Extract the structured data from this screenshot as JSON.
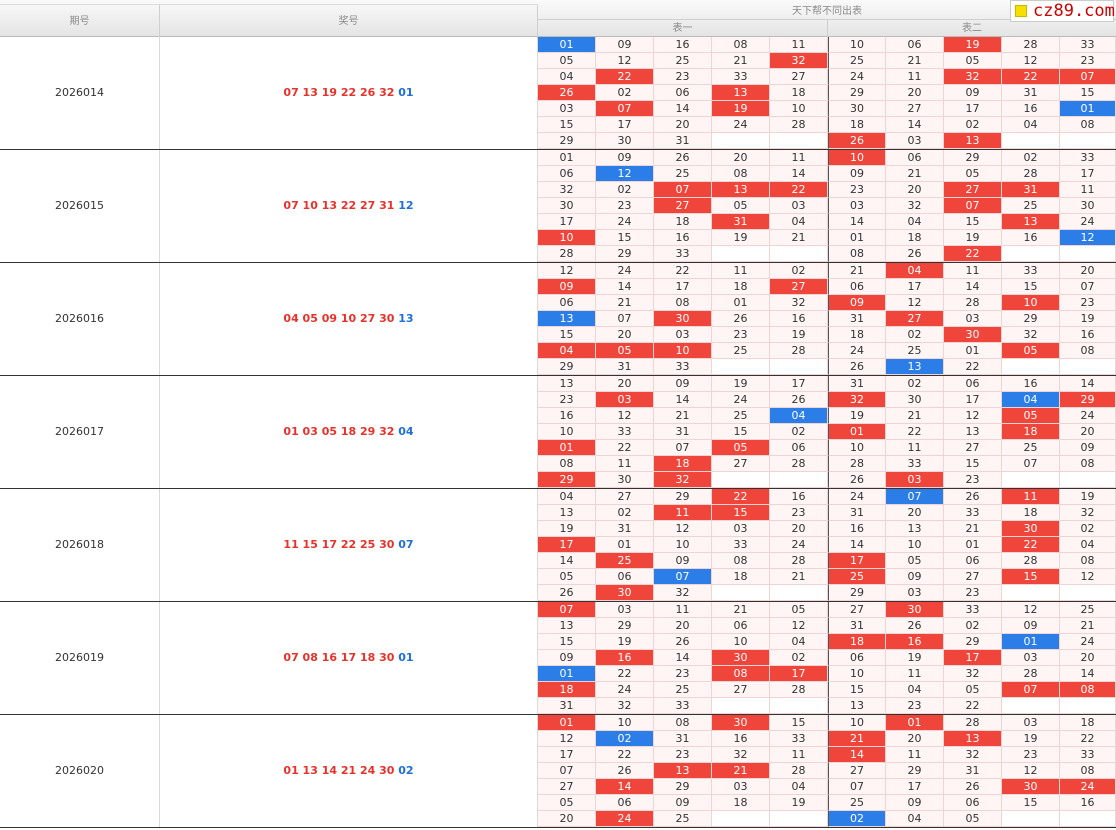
{
  "header": {
    "issue_label": "期号",
    "win_label": "奖号",
    "table_title": "天下帮不同出表",
    "table1_label": "表一",
    "table2_label": "表二"
  },
  "logo": {
    "text": "cz89.com"
  },
  "colors": {
    "red": "#f0453b",
    "blue": "#2b7de8",
    "win_red_text": "#e8312a",
    "win_blue_text": "#1f6fd9"
  },
  "periods": [
    {
      "issue": "2026014",
      "red": "07 13 19 22 26 32",
      "blue": "01",
      "rows": [
        [
          "01",
          "09",
          "16",
          "08",
          "11",
          "10",
          "06",
          "19",
          "28",
          "33"
        ],
        [
          "05",
          "12",
          "25",
          "21",
          "32",
          "25",
          "21",
          "05",
          "12",
          "23"
        ],
        [
          "04",
          "22",
          "23",
          "33",
          "27",
          "24",
          "11",
          "32",
          "22",
          "07"
        ],
        [
          "26",
          "02",
          "06",
          "13",
          "18",
          "29",
          "20",
          "09",
          "31",
          "15"
        ],
        [
          "03",
          "07",
          "14",
          "19",
          "10",
          "30",
          "27",
          "17",
          "16",
          "01"
        ],
        [
          "15",
          "17",
          "20",
          "24",
          "28",
          "18",
          "14",
          "02",
          "04",
          "08"
        ],
        [
          "29",
          "30",
          "31",
          "",
          "",
          "26",
          "03",
          "13",
          "",
          ""
        ]
      ],
      "hl": [
        [
          "b",
          "",
          "",
          "",
          "",
          "",
          "",
          "r",
          "",
          ""
        ],
        [
          "",
          "",
          "",
          "",
          "r",
          "",
          "",
          "",
          "",
          ""
        ],
        [
          "",
          "r",
          "",
          "",
          "",
          "",
          "",
          "r",
          "r",
          "r"
        ],
        [
          "r",
          "",
          "",
          "r",
          "",
          "",
          "",
          "",
          "",
          ""
        ],
        [
          "",
          "r",
          "",
          "r",
          "",
          "",
          "",
          "",
          "",
          "b"
        ],
        [
          "",
          "",
          "",
          "",
          "",
          "",
          "",
          "",
          "",
          ""
        ],
        [
          "",
          "",
          "",
          "",
          "",
          "r",
          "",
          "r",
          "",
          ""
        ]
      ]
    },
    {
      "issue": "2026015",
      "red": "07 10 13 22 27 31",
      "blue": "12",
      "rows": [
        [
          "01",
          "09",
          "26",
          "20",
          "11",
          "10",
          "06",
          "29",
          "02",
          "33"
        ],
        [
          "06",
          "12",
          "25",
          "08",
          "14",
          "09",
          "21",
          "05",
          "28",
          "17"
        ],
        [
          "32",
          "02",
          "07",
          "13",
          "22",
          "23",
          "20",
          "27",
          "31",
          "11"
        ],
        [
          "30",
          "23",
          "27",
          "05",
          "03",
          "03",
          "32",
          "07",
          "25",
          "30"
        ],
        [
          "17",
          "24",
          "18",
          "31",
          "04",
          "14",
          "04",
          "15",
          "13",
          "24"
        ],
        [
          "10",
          "15",
          "16",
          "19",
          "21",
          "01",
          "18",
          "19",
          "16",
          "12"
        ],
        [
          "28",
          "29",
          "33",
          "",
          "",
          "08",
          "26",
          "22",
          "",
          ""
        ]
      ],
      "hl": [
        [
          "",
          "",
          "",
          "",
          "",
          "r",
          "",
          "",
          "",
          ""
        ],
        [
          "",
          "b",
          "",
          "",
          "",
          "",
          "",
          "",
          "",
          ""
        ],
        [
          "",
          "",
          "r",
          "r",
          "r",
          "",
          "",
          "r",
          "r",
          ""
        ],
        [
          "",
          "",
          "r",
          "",
          "",
          "",
          "",
          "r",
          "",
          ""
        ],
        [
          "",
          "",
          "",
          "r",
          "",
          "",
          "",
          "",
          "r",
          ""
        ],
        [
          "r",
          "",
          "",
          "",
          "",
          "",
          "",
          "",
          "",
          "b"
        ],
        [
          "",
          "",
          "",
          "",
          "",
          "",
          "",
          "r",
          "",
          ""
        ]
      ]
    },
    {
      "issue": "2026016",
      "red": "04 05 09 10 27 30",
      "blue": "13",
      "rows": [
        [
          "12",
          "24",
          "22",
          "11",
          "02",
          "21",
          "04",
          "11",
          "33",
          "20"
        ],
        [
          "09",
          "14",
          "17",
          "18",
          "27",
          "06",
          "17",
          "14",
          "15",
          "07"
        ],
        [
          "06",
          "21",
          "08",
          "01",
          "32",
          "09",
          "12",
          "28",
          "10",
          "23"
        ],
        [
          "13",
          "07",
          "30",
          "26",
          "16",
          "31",
          "27",
          "03",
          "29",
          "19"
        ],
        [
          "15",
          "20",
          "03",
          "23",
          "19",
          "18",
          "02",
          "30",
          "32",
          "16"
        ],
        [
          "04",
          "05",
          "10",
          "25",
          "28",
          "24",
          "25",
          "01",
          "05",
          "08"
        ],
        [
          "29",
          "31",
          "33",
          "",
          "",
          "26",
          "13",
          "22",
          "",
          ""
        ]
      ],
      "hl": [
        [
          "",
          "",
          "",
          "",
          "",
          "",
          "r",
          "",
          "",
          ""
        ],
        [
          "r",
          "",
          "",
          "",
          "r",
          "",
          "",
          "",
          "",
          ""
        ],
        [
          "",
          "",
          "",
          "",
          "",
          "r",
          "",
          "",
          "r",
          ""
        ],
        [
          "b",
          "",
          "r",
          "",
          "",
          "",
          "r",
          "",
          "",
          ""
        ],
        [
          "",
          "",
          "",
          "",
          "",
          "",
          "",
          "r",
          "",
          ""
        ],
        [
          "r",
          "r",
          "r",
          "",
          "",
          "",
          "",
          "",
          "r",
          ""
        ],
        [
          "",
          "",
          "",
          "",
          "",
          "",
          "b",
          "",
          "",
          ""
        ]
      ]
    },
    {
      "issue": "2026017",
      "red": "01 03 05 18 29 32",
      "blue": "04",
      "rows": [
        [
          "13",
          "20",
          "09",
          "19",
          "17",
          "31",
          "02",
          "06",
          "16",
          "14"
        ],
        [
          "23",
          "03",
          "14",
          "24",
          "26",
          "32",
          "30",
          "17",
          "04",
          "29"
        ],
        [
          "16",
          "12",
          "21",
          "25",
          "04",
          "19",
          "21",
          "12",
          "05",
          "24"
        ],
        [
          "10",
          "33",
          "31",
          "15",
          "02",
          "01",
          "22",
          "13",
          "18",
          "20"
        ],
        [
          "01",
          "22",
          "07",
          "05",
          "06",
          "10",
          "11",
          "27",
          "25",
          "09"
        ],
        [
          "08",
          "11",
          "18",
          "27",
          "28",
          "28",
          "33",
          "15",
          "07",
          "08"
        ],
        [
          "29",
          "30",
          "32",
          "",
          "",
          "26",
          "03",
          "23",
          "",
          ""
        ]
      ],
      "hl": [
        [
          "",
          "",
          "",
          "",
          "",
          "",
          "",
          "",
          "",
          ""
        ],
        [
          "",
          "r",
          "",
          "",
          "",
          "r",
          "",
          "",
          "b",
          "r"
        ],
        [
          "",
          "",
          "",
          "",
          "b",
          "",
          "",
          "",
          "r",
          ""
        ],
        [
          "",
          "",
          "",
          "",
          "",
          "r",
          "",
          "",
          "r",
          ""
        ],
        [
          "r",
          "",
          "",
          "r",
          "",
          "",
          "",
          "",
          "",
          ""
        ],
        [
          "",
          "",
          "r",
          "",
          "",
          "",
          "",
          "",
          "",
          ""
        ],
        [
          "r",
          "",
          "r",
          "",
          "",
          "",
          "r",
          "",
          "",
          ""
        ]
      ]
    },
    {
      "issue": "2026018",
      "red": "11 15 17 22 25 30",
      "blue": "07",
      "rows": [
        [
          "04",
          "27",
          "29",
          "22",
          "16",
          "24",
          "07",
          "26",
          "11",
          "19"
        ],
        [
          "13",
          "02",
          "11",
          "15",
          "23",
          "31",
          "20",
          "33",
          "18",
          "32"
        ],
        [
          "19",
          "31",
          "12",
          "03",
          "20",
          "16",
          "13",
          "21",
          "30",
          "02"
        ],
        [
          "17",
          "01",
          "10",
          "33",
          "24",
          "14",
          "10",
          "01",
          "22",
          "04"
        ],
        [
          "14",
          "25",
          "09",
          "08",
          "28",
          "17",
          "05",
          "06",
          "28",
          "08"
        ],
        [
          "05",
          "06",
          "07",
          "18",
          "21",
          "25",
          "09",
          "27",
          "15",
          "12"
        ],
        [
          "26",
          "30",
          "32",
          "",
          "",
          "29",
          "03",
          "23",
          "",
          ""
        ]
      ],
      "hl": [
        [
          "",
          "",
          "",
          "r",
          "",
          "",
          "b",
          "",
          "r",
          ""
        ],
        [
          "",
          "",
          "r",
          "r",
          "",
          "",
          "",
          "",
          "",
          ""
        ],
        [
          "",
          "",
          "",
          "",
          "",
          "",
          "",
          "",
          "r",
          ""
        ],
        [
          "r",
          "",
          "",
          "",
          "",
          "",
          "",
          "",
          "r",
          ""
        ],
        [
          "",
          "r",
          "",
          "",
          "",
          "r",
          "",
          "",
          "",
          ""
        ],
        [
          "",
          "",
          "b",
          "",
          "",
          "r",
          "",
          "",
          "r",
          ""
        ],
        [
          "",
          "r",
          "",
          "",
          "",
          "",
          "",
          "",
          "",
          ""
        ]
      ]
    },
    {
      "issue": "2026019",
      "red": "07 08 16 17 18 30",
      "blue": "01",
      "rows": [
        [
          "07",
          "03",
          "11",
          "21",
          "05",
          "27",
          "30",
          "33",
          "12",
          "25"
        ],
        [
          "13",
          "29",
          "20",
          "06",
          "12",
          "31",
          "26",
          "02",
          "09",
          "21"
        ],
        [
          "15",
          "19",
          "26",
          "10",
          "04",
          "18",
          "16",
          "29",
          "01",
          "24"
        ],
        [
          "09",
          "16",
          "14",
          "30",
          "02",
          "06",
          "19",
          "17",
          "03",
          "20"
        ],
        [
          "01",
          "22",
          "23",
          "08",
          "17",
          "10",
          "11",
          "32",
          "28",
          "14"
        ],
        [
          "18",
          "24",
          "25",
          "27",
          "28",
          "15",
          "04",
          "05",
          "07",
          "08"
        ],
        [
          "31",
          "32",
          "33",
          "",
          "",
          "13",
          "23",
          "22",
          "",
          ""
        ]
      ],
      "hl": [
        [
          "r",
          "",
          "",
          "",
          "",
          "",
          "r",
          "",
          "",
          ""
        ],
        [
          "",
          "",
          "",
          "",
          "",
          "",
          "",
          "",
          "",
          ""
        ],
        [
          "",
          "",
          "",
          "",
          "",
          "r",
          "r",
          "",
          "b",
          ""
        ],
        [
          "",
          "r",
          "",
          "r",
          "",
          "",
          "",
          "r",
          "",
          ""
        ],
        [
          "b",
          "",
          "",
          "r",
          "r",
          "",
          "",
          "",
          "",
          ""
        ],
        [
          "r",
          "",
          "",
          "",
          "",
          "",
          "",
          "",
          "r",
          "r"
        ],
        [
          "",
          "",
          "",
          "",
          "",
          "",
          "",
          "",
          "",
          ""
        ]
      ]
    },
    {
      "issue": "2026020",
      "red": "01 13 14 21 24 30",
      "blue": "02",
      "rows": [
        [
          "01",
          "10",
          "08",
          "30",
          "15",
          "10",
          "01",
          "28",
          "03",
          "18"
        ],
        [
          "12",
          "02",
          "31",
          "16",
          "33",
          "21",
          "20",
          "13",
          "19",
          "22"
        ],
        [
          "17",
          "22",
          "23",
          "32",
          "11",
          "14",
          "11",
          "32",
          "23",
          "33"
        ],
        [
          "07",
          "26",
          "13",
          "21",
          "28",
          "27",
          "29",
          "31",
          "12",
          "08"
        ],
        [
          "27",
          "14",
          "29",
          "03",
          "04",
          "07",
          "17",
          "26",
          "30",
          "24"
        ],
        [
          "05",
          "06",
          "09",
          "18",
          "19",
          "25",
          "09",
          "06",
          "15",
          "16"
        ],
        [
          "20",
          "24",
          "25",
          "",
          "",
          "02",
          "04",
          "05",
          "",
          ""
        ]
      ],
      "hl": [
        [
          "r",
          "",
          "",
          "r",
          "",
          "",
          "r",
          "",
          "",
          ""
        ],
        [
          "",
          "b",
          "",
          "",
          "",
          "r",
          "",
          "r",
          "",
          ""
        ],
        [
          "",
          "",
          "",
          "",
          "",
          "r",
          "",
          "",
          "",
          ""
        ],
        [
          "",
          "",
          "r",
          "r",
          "",
          "",
          "",
          "",
          "",
          ""
        ],
        [
          "",
          "r",
          "",
          "",
          "",
          "",
          "",
          "",
          "r",
          "r"
        ],
        [
          "",
          "",
          "",
          "",
          "",
          "",
          "",
          "",
          "",
          ""
        ],
        [
          "",
          "r",
          "",
          "",
          "",
          "b",
          "",
          "",
          "",
          ""
        ]
      ]
    }
  ]
}
